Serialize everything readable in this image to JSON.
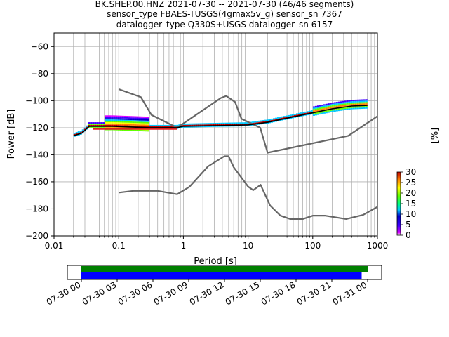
{
  "chart_data": {
    "type": "line",
    "title_lines": [
      "BK.SHEP.00.HNZ   2021-07-30 -- 2021-07-30  (46/46 segments)",
      "sensor_type FBAES-TUSGS(4gmax5v_g) sensor_sn 7367",
      "datalogger_type Q330S+USGS datalogger_sn 6157"
    ],
    "xlabel": "Period [s]",
    "ylabel": "Power [dB]",
    "xscale": "log",
    "xlim": [
      0.01,
      1000
    ],
    "ylim": [
      -200,
      -50
    ],
    "x_ticks": [
      "0.01",
      "0.1",
      "1",
      "10",
      "100",
      "1000"
    ],
    "y_ticks": [
      "−200",
      "−180",
      "−160",
      "−140",
      "−120",
      "−100",
      "−80",
      "−60"
    ],
    "grid": true,
    "colorbar": {
      "label": "[%]",
      "ticks": [
        "0",
        "5",
        "10",
        "15",
        "20",
        "25",
        "30"
      ],
      "range": [
        0,
        30
      ]
    },
    "series": [
      {
        "role": "noise-model-high",
        "color": "#666666",
        "points": [
          [
            0.1,
            -91.5
          ],
          [
            0.22,
            -97.4
          ],
          [
            0.32,
            -110.5
          ],
          [
            0.8,
            -120
          ],
          [
            3.8,
            -98
          ],
          [
            4.6,
            -96.5
          ],
          [
            6.3,
            -101
          ],
          [
            7.9,
            -113.5
          ],
          [
            15.4,
            -120
          ],
          [
            20,
            -138.5
          ],
          [
            354,
            -126
          ],
          [
            1000,
            -111.5
          ]
        ]
      },
      {
        "role": "noise-model-low",
        "color": "#666666",
        "points": [
          [
            0.1,
            -168
          ],
          [
            0.17,
            -166.7
          ],
          [
            0.4,
            -166.7
          ],
          [
            0.8,
            -169.2
          ],
          [
            1.24,
            -163.7
          ],
          [
            2.4,
            -148.6
          ],
          [
            4.3,
            -141.1
          ],
          [
            5.0,
            -141.1
          ],
          [
            6.0,
            -149.2
          ],
          [
            10,
            -163.5
          ],
          [
            12,
            -166.2
          ],
          [
            15.6,
            -162.2
          ],
          [
            21.9,
            -177.5
          ],
          [
            31.6,
            -185
          ],
          [
            45,
            -187.5
          ],
          [
            70,
            -187.5
          ],
          [
            101,
            -185
          ],
          [
            154,
            -185
          ],
          [
            328,
            -187.5
          ],
          [
            600,
            -184.5
          ],
          [
            1000,
            -178.5
          ]
        ]
      },
      {
        "role": "mode",
        "color": "#000000",
        "points": [
          [
            0.02,
            -126
          ],
          [
            0.027,
            -124
          ],
          [
            0.035,
            -119
          ],
          [
            0.08,
            -119
          ],
          [
            0.3,
            -120
          ],
          [
            0.8,
            -120
          ],
          [
            1,
            -119
          ],
          [
            3,
            -118.5
          ],
          [
            10,
            -118
          ],
          [
            20,
            -116
          ],
          [
            50,
            -112
          ],
          [
            100,
            -109
          ],
          [
            200,
            -106
          ],
          [
            400,
            -104
          ],
          [
            700,
            -103.5
          ]
        ]
      }
    ],
    "pdf_spread_db": 12,
    "data_availability": {
      "x_ticks": [
        "07-30 00",
        "07-30 03",
        "07-30 06",
        "07-30 09",
        "07-30 12",
        "07-30 15",
        "07-30 18",
        "07-30 21",
        "07-31 00"
      ],
      "total_hours": 24,
      "bars": [
        {
          "role": "psd-used",
          "color": "#008000",
          "start_hour": 0,
          "end_hour": 24.0
        },
        {
          "role": "data",
          "color": "#0000ff",
          "start_hour": 0,
          "end_hour": 23.5
        }
      ]
    }
  }
}
